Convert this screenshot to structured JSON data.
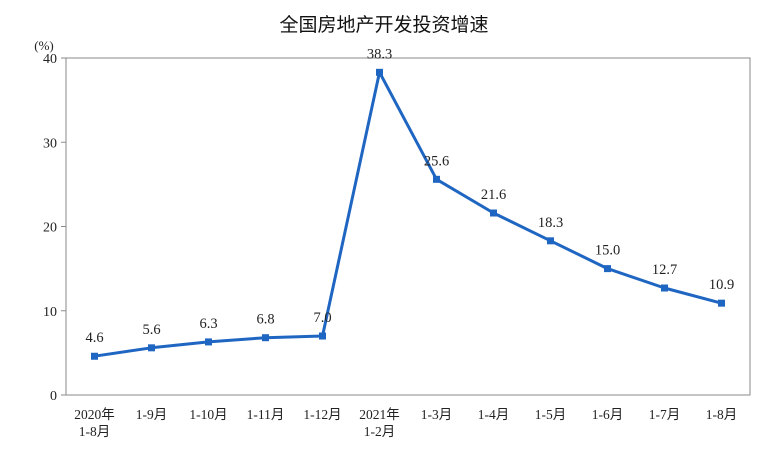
{
  "chart_data": {
    "type": "line",
    "title": "全国房地产开发投资增速",
    "ylabel": "(%)",
    "xlabel": "",
    "ylim": [
      0,
      40
    ],
    "yticks": [
      "0",
      "10",
      "20",
      "30",
      "40"
    ],
    "grid": false,
    "line_color": "#1f66c2",
    "categories": [
      [
        "2020年",
        "1-8月"
      ],
      [
        "1-9月"
      ],
      [
        "1-10月"
      ],
      [
        "1-11月"
      ],
      [
        "1-12月"
      ],
      [
        "2021年",
        "1-2月"
      ],
      [
        "1-3月"
      ],
      [
        "1-4月"
      ],
      [
        "1-5月"
      ],
      [
        "1-6月"
      ],
      [
        "1-7月"
      ],
      [
        "1-8月"
      ]
    ],
    "values": [
      4.6,
      5.6,
      6.3,
      6.8,
      7.0,
      38.3,
      25.6,
      21.6,
      18.3,
      15.0,
      12.7,
      10.9
    ],
    "value_labels": [
      "4.6",
      "5.6",
      "6.3",
      "6.8",
      "7.0",
      "38.3",
      "25.6",
      "21.6",
      "18.3",
      "15.0",
      "12.7",
      "10.9"
    ]
  }
}
